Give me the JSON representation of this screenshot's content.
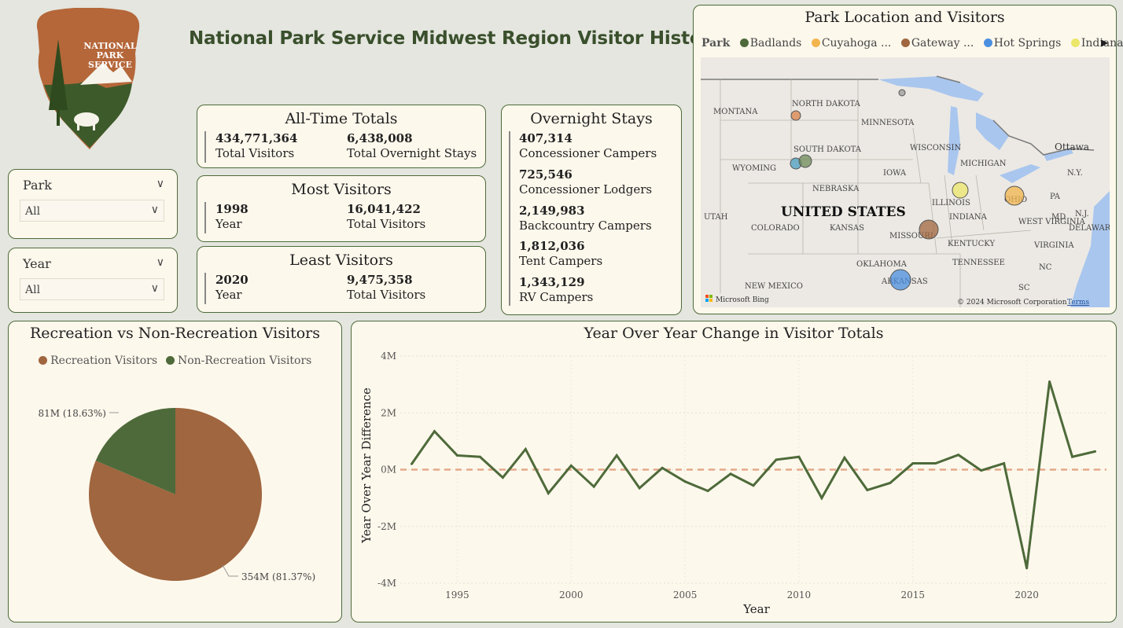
{
  "page": {
    "title": "National Park Service Midwest Region Visitor History"
  },
  "logo": {
    "line1": "NATIONAL",
    "line2": "PARK",
    "line3": "SERVICE"
  },
  "filters": [
    {
      "label": "Park",
      "value": "All"
    },
    {
      "label": "Year",
      "value": "All"
    }
  ],
  "all_time": {
    "title": "All-Time Totals",
    "total_visitors": "434,771,364",
    "total_visitors_label": "Total Visitors",
    "total_overnight": "6,438,008",
    "total_overnight_label": "Total Overnight Stays"
  },
  "most": {
    "title": "Most Visitors",
    "year": "1998",
    "year_label": "Year",
    "visitors": "16,041,422",
    "visitors_label": "Total Visitors"
  },
  "least": {
    "title": "Least Visitors",
    "year": "2020",
    "year_label": "Year",
    "visitors": "9,475,358",
    "visitors_label": "Total Visitors"
  },
  "overnight": {
    "title": "Overnight Stays",
    "items": [
      {
        "value": "407,314",
        "label": "Concessioner Campers"
      },
      {
        "value": "725,546",
        "label": "Concessioner Lodgers"
      },
      {
        "value": "2,149,983",
        "label": "Backcountry Campers"
      },
      {
        "value": "1,812,036",
        "label": "Tent Campers"
      },
      {
        "value": "1,343,129",
        "label": "RV Campers"
      }
    ]
  },
  "map": {
    "title": "Park Location and Visitors",
    "legend_title": "Park",
    "legend": [
      {
        "name": "Badlands",
        "color": "#4e6a3a"
      },
      {
        "name": "Cuyahoga ...",
        "color": "#f2b54e"
      },
      {
        "name": "Gateway ...",
        "color": "#a0663f"
      },
      {
        "name": "Hot Springs",
        "color": "#4b8fe0"
      },
      {
        "name": "Indiana D...",
        "color": "#ece66a"
      }
    ],
    "labels": {
      "montana": "MONTANA",
      "north_dakota": "NORTH DAKOTA",
      "minnesota": "MINNESOTA",
      "south_dakota": "SOUTH DAKOTA",
      "wisconsin": "WISCONSIN",
      "michigan": "MICHIGAN",
      "wyoming": "WYOMING",
      "iowa": "IOWA",
      "nebraska": "NEBRASKA",
      "illinois": "ILLINOIS",
      "ohio": "OHIO",
      "pa": "PA",
      "ny": "N.Y.",
      "ottawa": "Ottawa",
      "utah": "UTAH",
      "colorado": "COLORADO",
      "kansas": "KANSAS",
      "missouri": "MISSOURI",
      "indiana": "INDIANA",
      "west_virginia": "WEST VIRGINIA",
      "virginia": "VIRGINIA",
      "md": "MD",
      "nj": "N.J.",
      "delaware": "DELAWARE",
      "kentucky": "KENTUCKY",
      "tennessee": "TENNESSEE",
      "oklahoma": "OKLAHOMA",
      "arkansas": "ARKANSAS",
      "nc": "NC",
      "sc": "SC",
      "new_mexico": "NEW MEXICO",
      "country": "UNITED STATES",
      "attribution": "© 2024 Microsoft Corporation",
      "terms": "Terms",
      "bing": "Microsoft Bing"
    }
  },
  "pie": {
    "title": "Recreation vs Non-Recreation Visitors",
    "legend": [
      {
        "name": "Recreation Visitors",
        "color": "#a0663f"
      },
      {
        "name": "Non-Recreation Visitors",
        "color": "#4e6a3a"
      }
    ],
    "labels": {
      "non_recreation": "81M (18.63%)",
      "recreation": "354M (81.37%)"
    }
  },
  "chart_data": {
    "type": "line",
    "title": "Year Over Year Change in Visitor Totals",
    "xlabel": "Year",
    "ylabel": "Year Over Year Difference",
    "xlim": [
      1992.5,
      2023.5
    ],
    "ylim": [
      -4000000,
      4000000
    ],
    "x_ticks": [
      1995,
      2000,
      2005,
      2010,
      2015,
      2020
    ],
    "y_ticks": [
      4000000,
      2000000,
      0,
      -2000000,
      -4000000
    ],
    "y_tick_labels": [
      "4M",
      "2M",
      "0M",
      "-2M",
      "-4M"
    ],
    "reference_line": 0,
    "series_color": "#4e6a3a",
    "x": [
      1993,
      1994,
      1995,
      1996,
      1997,
      1998,
      1999,
      2000,
      2001,
      2002,
      2003,
      2004,
      2005,
      2006,
      2007,
      2008,
      2009,
      2010,
      2011,
      2012,
      2013,
      2014,
      2015,
      2016,
      2017,
      2018,
      2019,
      2020,
      2021,
      2022,
      2023
    ],
    "y": [
      200000,
      1350000,
      500000,
      450000,
      -280000,
      720000,
      -830000,
      140000,
      -600000,
      500000,
      -650000,
      60000,
      -420000,
      -750000,
      -150000,
      -560000,
      350000,
      450000,
      -1000000,
      420000,
      -720000,
      -470000,
      220000,
      220000,
      520000,
      -30000,
      220000,
      -3470000,
      3100000,
      450000,
      640000
    ]
  }
}
